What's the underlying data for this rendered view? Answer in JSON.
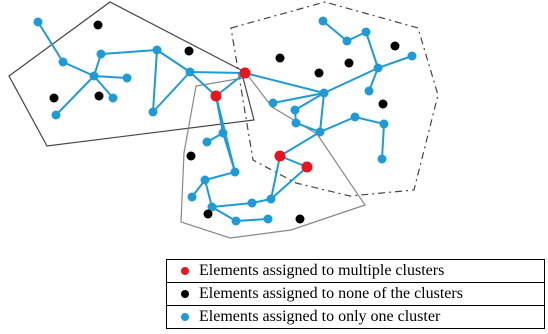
{
  "colors": {
    "multiple": "#e8141f",
    "none": "#000000",
    "single": "#1e9bd7",
    "edge": "#1e9bd7"
  },
  "legend": [
    {
      "marker": "multiple",
      "label": "Elements assigned to multiple clusters"
    },
    {
      "marker": "none",
      "label": "Elements assigned to none of the clusters"
    },
    {
      "marker": "single",
      "label": "Elements assigned to only one cluster"
    }
  ]
}
